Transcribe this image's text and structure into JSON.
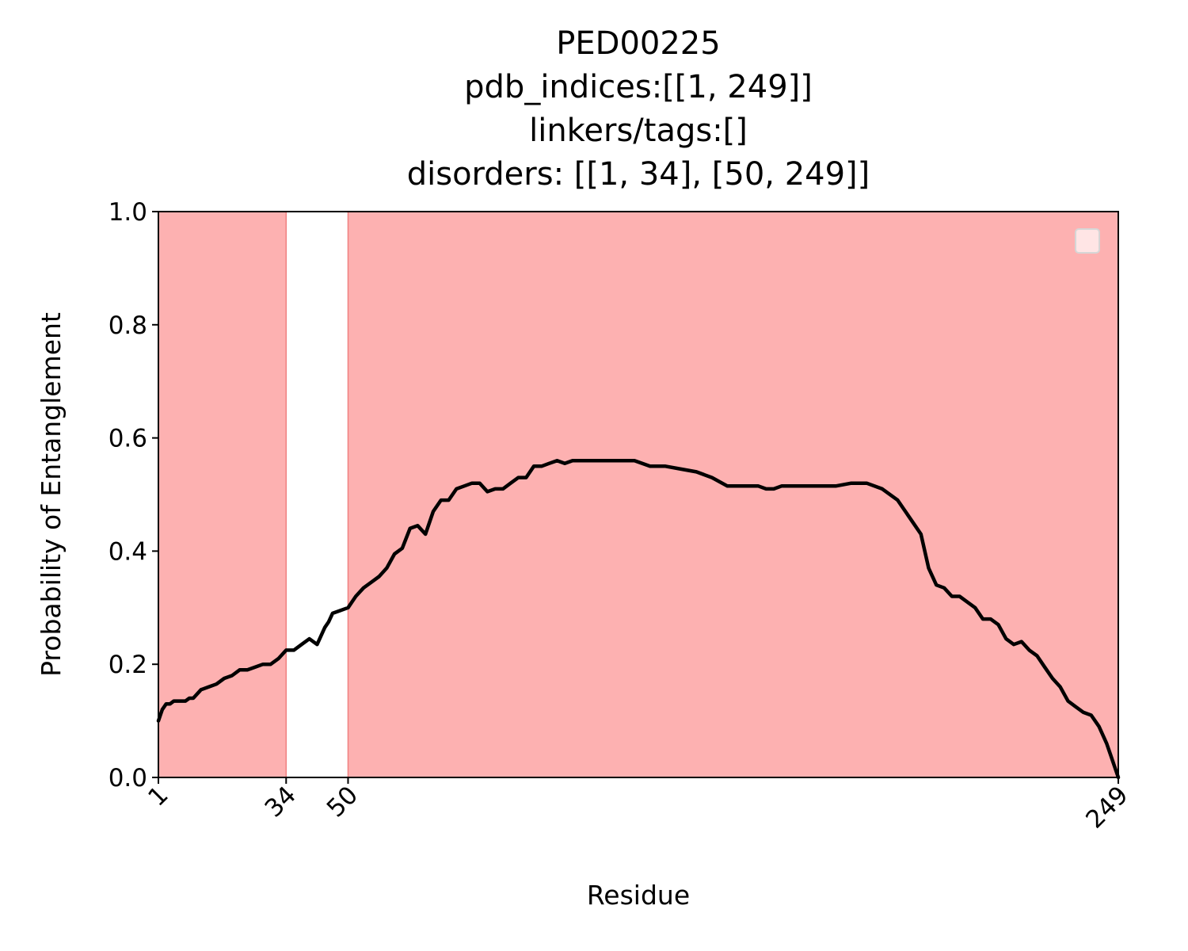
{
  "chart_data": {
    "type": "line",
    "title_lines": [
      "PED00225",
      "pdb_indices:[[1, 249]]",
      "linkers/tags:[]",
      "disorders: [[1, 34], [50, 249]]"
    ],
    "xlabel": "Residue",
    "ylabel": "Probability of Entanglement",
    "xlim": [
      1,
      249
    ],
    "ylim": [
      0,
      1.0
    ],
    "x_ticks": [
      1,
      34,
      50,
      249
    ],
    "x_tick_labels": [
      "1",
      "34",
      "50",
      "249"
    ],
    "y_ticks": [
      0.0,
      0.2,
      0.4,
      0.6,
      0.8,
      1.0
    ],
    "y_tick_labels": [
      "0.0",
      "0.2",
      "0.4",
      "0.6",
      "0.8",
      "1.0"
    ],
    "shaded_regions": [
      [
        1,
        34
      ],
      [
        50,
        249
      ]
    ],
    "shade_color": "#fdb1b1",
    "shade_edge_color": "#f08080",
    "line_color": "#000000",
    "legend": {
      "placement": "top-right",
      "entries": []
    },
    "grid": false,
    "series": [
      {
        "x": [
          1,
          2,
          3,
          4,
          5,
          6,
          7,
          8,
          9,
          10,
          12,
          14,
          16,
          18,
          20,
          22,
          24,
          26,
          28,
          30,
          32,
          34,
          36,
          38,
          40,
          42,
          44,
          45,
          46,
          48,
          50,
          52,
          54,
          56,
          58,
          60,
          62,
          64,
          66,
          68,
          70,
          72,
          74,
          76,
          78,
          80,
          82,
          84,
          86,
          88,
          90,
          92,
          94,
          96,
          98,
          100,
          102,
          104,
          106,
          108,
          110,
          112,
          114,
          116,
          118,
          120,
          124,
          128,
          132,
          136,
          140,
          144,
          148,
          150,
          152,
          154,
          156,
          158,
          160,
          162,
          164,
          168,
          172,
          176,
          180,
          184,
          188,
          192,
          196,
          198,
          200,
          202,
          204,
          206,
          208,
          210,
          212,
          214,
          216,
          218,
          220,
          222,
          224,
          226,
          228,
          230,
          232,
          234,
          236,
          238,
          240,
          242,
          244,
          246,
          247,
          248,
          249
        ],
        "y": [
          0.1,
          0.12,
          0.13,
          0.13,
          0.135,
          0.135,
          0.135,
          0.135,
          0.14,
          0.14,
          0.155,
          0.16,
          0.165,
          0.175,
          0.18,
          0.19,
          0.19,
          0.195,
          0.2,
          0.2,
          0.21,
          0.225,
          0.225,
          0.235,
          0.245,
          0.235,
          0.265,
          0.275,
          0.29,
          0.295,
          0.3,
          0.32,
          0.335,
          0.345,
          0.355,
          0.37,
          0.395,
          0.405,
          0.44,
          0.445,
          0.43,
          0.47,
          0.49,
          0.49,
          0.51,
          0.515,
          0.52,
          0.52,
          0.505,
          0.51,
          0.51,
          0.52,
          0.53,
          0.53,
          0.55,
          0.55,
          0.555,
          0.56,
          0.555,
          0.56,
          0.56,
          0.56,
          0.56,
          0.56,
          0.56,
          0.56,
          0.56,
          0.55,
          0.55,
          0.545,
          0.54,
          0.53,
          0.515,
          0.515,
          0.515,
          0.515,
          0.515,
          0.51,
          0.51,
          0.515,
          0.515,
          0.515,
          0.515,
          0.515,
          0.52,
          0.52,
          0.51,
          0.49,
          0.45,
          0.43,
          0.37,
          0.34,
          0.335,
          0.32,
          0.32,
          0.31,
          0.3,
          0.28,
          0.28,
          0.27,
          0.245,
          0.235,
          0.24,
          0.225,
          0.215,
          0.195,
          0.175,
          0.16,
          0.135,
          0.125,
          0.115,
          0.11,
          0.09,
          0.06,
          0.04,
          0.02,
          0.0
        ]
      }
    ]
  }
}
